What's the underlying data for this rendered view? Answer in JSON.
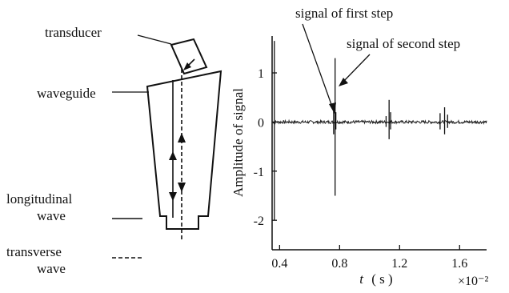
{
  "schematic": {
    "transducer_label": "transducer",
    "waveguide_label": "waveguide",
    "longitudinal_label_line1": "longitudinal",
    "longitudinal_label_line2": "wave",
    "transverse_label_line1": "transverse",
    "transverse_label_line2": "wave"
  },
  "annotations": {
    "first_step": "signal of first step",
    "second_step": "signal of second step"
  },
  "chart_data": {
    "type": "line",
    "ylabel": "Amplitude of signal",
    "xlabel_symbol": "t",
    "xlabel_unit": "( s )",
    "x_multiplier": "×10⁻²",
    "xlim": [
      0.35,
      1.78
    ],
    "ylim": [
      -2.6,
      1.75
    ],
    "x_ticks": [
      0.4,
      0.8,
      1.2,
      1.6
    ],
    "x_tick_labels": [
      "0.4",
      "0.8",
      "1.2",
      "1.6"
    ],
    "y_ticks": [
      1,
      0,
      -1,
      -2
    ],
    "y_tick_labels": [
      "1",
      "0",
      "-1",
      "-2"
    ],
    "baseline_noise": 0.03,
    "pulses": [
      {
        "t": 0.365,
        "max": 1.65,
        "min": -2.0
      },
      {
        "t": 0.76,
        "max": 0.35,
        "min": -0.25
      },
      {
        "t": 0.77,
        "max": 1.3,
        "min": -1.5
      },
      {
        "t": 0.775,
        "max": 0.2,
        "min": -0.15
      },
      {
        "t": 1.11,
        "max": 0.12,
        "min": -0.1
      },
      {
        "t": 1.13,
        "max": 0.45,
        "min": -0.35
      },
      {
        "t": 1.14,
        "max": 0.2,
        "min": -0.15
      },
      {
        "t": 1.47,
        "max": 0.18,
        "min": -0.15
      },
      {
        "t": 1.5,
        "max": 0.3,
        "min": -0.25
      },
      {
        "t": 1.52,
        "max": 0.15,
        "min": -0.12
      }
    ]
  }
}
